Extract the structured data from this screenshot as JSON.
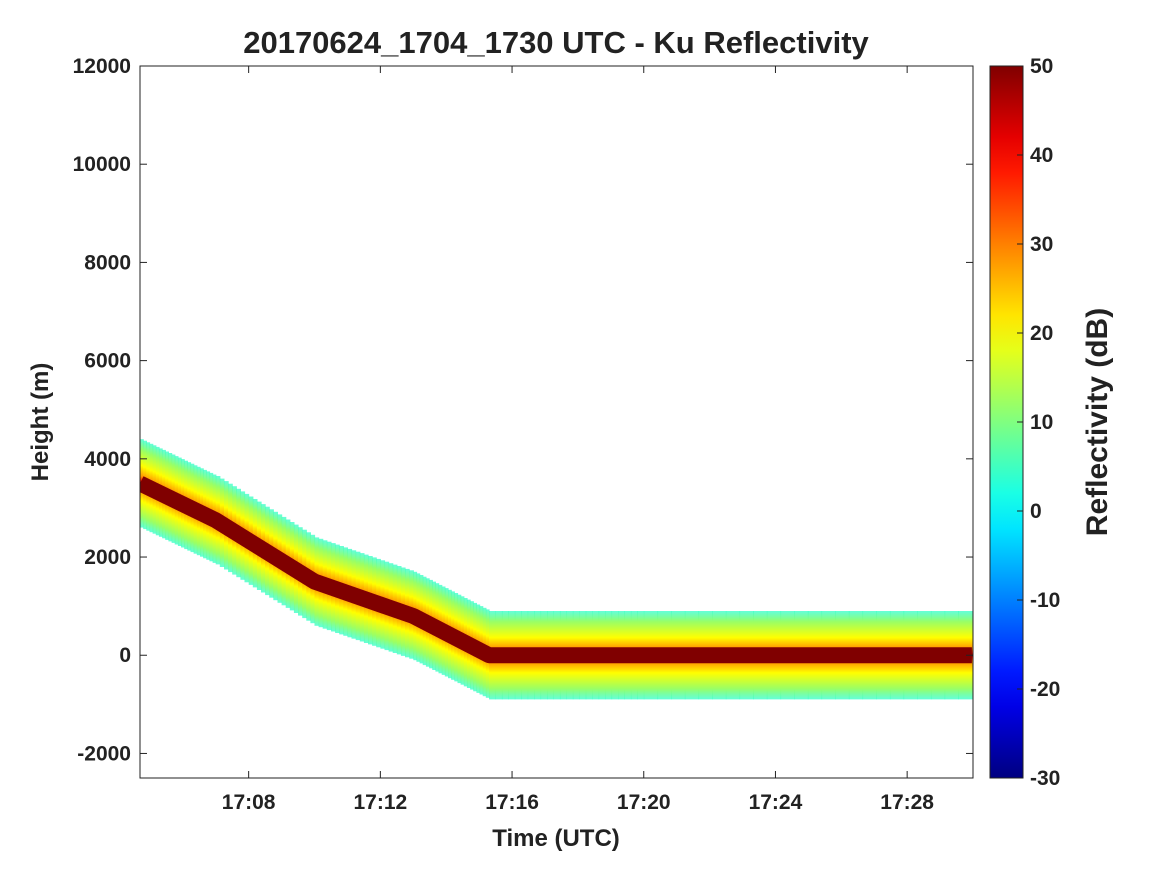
{
  "chart_data": {
    "type": "heatmap",
    "title": "20170624_1704_1730 UTC - Ku Reflectivity",
    "xlabel": "Time (UTC)",
    "ylabel": "Height (m)",
    "xlim_minutes": [
      1024.7,
      1050.0
    ],
    "ylim": [
      -2500,
      12000
    ],
    "x_ticks": [
      {
        "minute": 1028,
        "label": "17:08"
      },
      {
        "minute": 1032,
        "label": "17:12"
      },
      {
        "minute": 1036,
        "label": "17:16"
      },
      {
        "minute": 1040,
        "label": "17:20"
      },
      {
        "minute": 1044,
        "label": "17:24"
      },
      {
        "minute": 1048,
        "label": "17:28"
      }
    ],
    "y_ticks": [
      12000,
      10000,
      8000,
      6000,
      4000,
      2000,
      0,
      -2000
    ],
    "y_tick_labels": [
      "12000",
      "10000",
      "8000",
      "6000",
      "4000",
      "2000",
      "0",
      "-2000"
    ],
    "colorbar": {
      "label": "Reflectivity (dB)",
      "clim": [
        -30,
        50
      ],
      "ticks": [
        50,
        40,
        30,
        20,
        10,
        0,
        -10,
        -20,
        -30
      ],
      "tick_labels": [
        "50",
        "40",
        "30",
        "20",
        "10",
        "0",
        "-10",
        "-20",
        "-30"
      ],
      "colormap": "jet"
    },
    "surface_echo_track": {
      "time_labels": [
        "17:04:42",
        "17:07:00",
        "17:10:00",
        "17:13:00",
        "17:15:18",
        "17:20:00",
        "17:29:58"
      ],
      "height_m": [
        3500,
        2750,
        1500,
        800,
        0,
        0,
        0
      ],
      "peak_reflectivity_db": 50,
      "band_halfwidth_m": 900
    }
  }
}
